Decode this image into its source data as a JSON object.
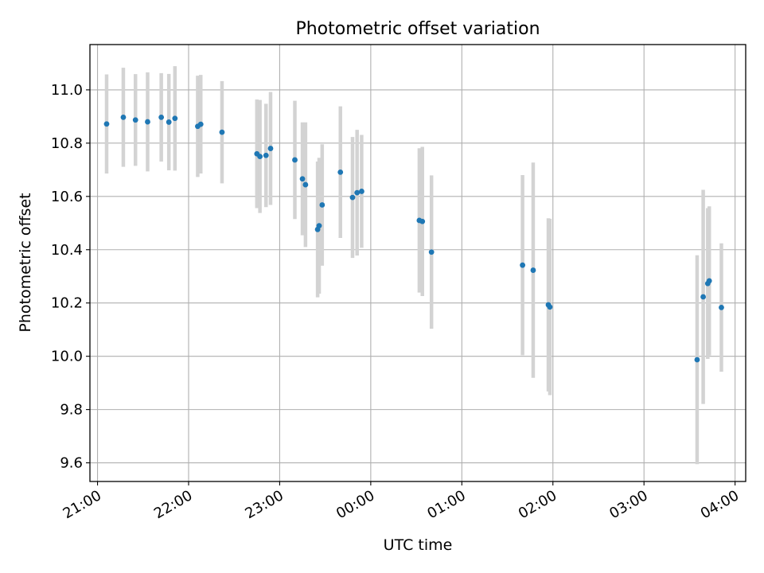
{
  "chart_data": {
    "type": "scatter",
    "title": "Photometric offset variation",
    "xlabel": "UTC time",
    "ylabel": "Photometric offset",
    "x_is_time": true,
    "xlim": [
      "20:55",
      "04:07"
    ],
    "ylim": [
      9.53,
      11.17
    ],
    "xticks": [
      "21:00",
      "22:00",
      "23:00",
      "00:00",
      "01:00",
      "02:00",
      "03:00",
      "04:00"
    ],
    "yticks": [
      "9.6",
      "9.8",
      "10.0",
      "10.2",
      "10.4",
      "10.6",
      "10.8",
      "11.0"
    ],
    "grid": true,
    "points": [
      {
        "x": "21:06",
        "y": 10.872,
        "err": 0.186
      },
      {
        "x": "21:17",
        "y": 10.897,
        "err": 0.186
      },
      {
        "x": "21:25",
        "y": 10.887,
        "err": 0.172
      },
      {
        "x": "21:33",
        "y": 10.88,
        "err": 0.186
      },
      {
        "x": "21:42",
        "y": 10.897,
        "err": 0.166
      },
      {
        "x": "21:47",
        "y": 10.879,
        "err": 0.181
      },
      {
        "x": "21:51",
        "y": 10.893,
        "err": 0.196
      },
      {
        "x": "22:06",
        "y": 10.863,
        "err": 0.19
      },
      {
        "x": "22:08",
        "y": 10.871,
        "err": 0.185
      },
      {
        "x": "22:22",
        "y": 10.841,
        "err": 0.192
      },
      {
        "x": "22:45",
        "y": 10.76,
        "err": 0.204
      },
      {
        "x": "22:47",
        "y": 10.75,
        "err": 0.212
      },
      {
        "x": "22:51",
        "y": 10.754,
        "err": 0.194
      },
      {
        "x": "22:54",
        "y": 10.78,
        "err": 0.212
      },
      {
        "x": "23:10",
        "y": 10.737,
        "err": 0.222
      },
      {
        "x": "23:15",
        "y": 10.666,
        "err": 0.212
      },
      {
        "x": "23:17",
        "y": 10.644,
        "err": 0.234
      },
      {
        "x": "23:25",
        "y": 10.476,
        "err": 0.255
      },
      {
        "x": "23:26",
        "y": 10.49,
        "err": 0.255
      },
      {
        "x": "23:28",
        "y": 10.568,
        "err": 0.228
      },
      {
        "x": "23:40",
        "y": 10.691,
        "err": 0.247
      },
      {
        "x": "23:48",
        "y": 10.596,
        "err": 0.227
      },
      {
        "x": "23:51",
        "y": 10.614,
        "err": 0.236
      },
      {
        "x": "23:54",
        "y": 10.619,
        "err": 0.212
      },
      {
        "x": "00:32",
        "y": 10.51,
        "err": 0.271
      },
      {
        "x": "00:34",
        "y": 10.506,
        "err": 0.28
      },
      {
        "x": "00:40",
        "y": 10.391,
        "err": 0.288
      },
      {
        "x": "01:40",
        "y": 10.342,
        "err": 0.338
      },
      {
        "x": "01:47",
        "y": 10.323,
        "err": 0.404
      },
      {
        "x": "01:57",
        "y": 10.193,
        "err": 0.325
      },
      {
        "x": "01:58",
        "y": 10.185,
        "err": 0.331
      },
      {
        "x": "03:35",
        "y": 9.987,
        "err": 0.392
      },
      {
        "x": "03:39",
        "y": 10.223,
        "err": 0.402
      },
      {
        "x": "03:42",
        "y": 10.273,
        "err": 0.283
      },
      {
        "x": "03:43",
        "y": 10.283,
        "err": 0.28
      },
      {
        "x": "03:51",
        "y": 10.183,
        "err": 0.241
      }
    ],
    "colors": {
      "marker": "#1f77b4",
      "errorbar": "#d3d3d3",
      "grid": "#b0b0b0",
      "axes": "#000000"
    }
  }
}
